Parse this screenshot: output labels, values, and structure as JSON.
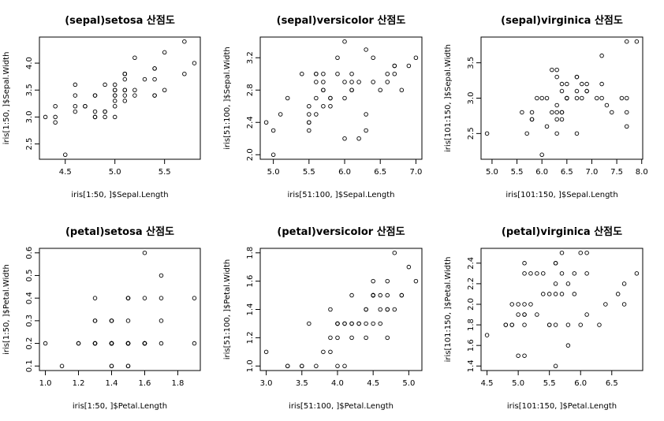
{
  "chart_data": [
    {
      "type": "scatter",
      "title": "(sepal)setosa 산점도",
      "xlabel": "iris[1:50, ]$Sepal.Length",
      "ylabel": "iris[1:50, ]$Sepal.Width",
      "xlim": [
        4.3,
        5.8
      ],
      "ylim": [
        2.3,
        4.4
      ],
      "xticks": [
        4.5,
        5.0,
        5.5
      ],
      "xtick_labels": [
        "4.5",
        "5.0",
        "5.5"
      ],
      "yticks": [
        2.5,
        3.0,
        3.5,
        4.0
      ],
      "ytick_labels": [
        "2.5",
        "3.0",
        "3.5",
        "4.0"
      ],
      "x": [
        5.1,
        4.9,
        4.7,
        4.6,
        5.0,
        5.4,
        4.6,
        5.0,
        4.4,
        4.9,
        5.4,
        4.8,
        4.8,
        4.3,
        5.8,
        5.7,
        5.4,
        5.1,
        5.7,
        5.1,
        5.4,
        5.1,
        4.6,
        5.1,
        4.8,
        5.0,
        5.0,
        5.2,
        5.2,
        4.7,
        4.8,
        5.4,
        5.2,
        5.5,
        4.9,
        5.0,
        5.5,
        4.9,
        4.4,
        5.1,
        5.0,
        4.5,
        4.4,
        5.0,
        5.1,
        4.8,
        5.1,
        4.6,
        5.3,
        5.0
      ],
      "y": [
        3.5,
        3.0,
        3.2,
        3.1,
        3.6,
        3.9,
        3.4,
        3.4,
        2.9,
        3.1,
        3.7,
        3.4,
        3.0,
        3.0,
        4.0,
        4.4,
        3.9,
        3.5,
        3.8,
        3.8,
        3.4,
        3.7,
        3.6,
        3.3,
        3.4,
        3.0,
        3.4,
        3.5,
        3.4,
        3.2,
        3.1,
        3.4,
        4.1,
        4.2,
        3.1,
        3.2,
        3.5,
        3.6,
        3.0,
        3.4,
        3.5,
        2.3,
        3.2,
        3.5,
        3.8,
        3.0,
        3.8,
        3.2,
        3.7,
        3.3
      ]
    },
    {
      "type": "scatter",
      "title": "(sepal)versicolor 산점도",
      "xlabel": "iris[51:100, ]$Sepal.Length",
      "ylabel": "iris[51:100, ]$Sepal.Width",
      "xlim": [
        4.9,
        7.0
      ],
      "ylim": [
        2.0,
        3.4
      ],
      "xticks": [
        5.0,
        5.5,
        6.0,
        6.5,
        7.0
      ],
      "xtick_labels": [
        "5.0",
        "5.5",
        "6.0",
        "6.5",
        "7.0"
      ],
      "yticks": [
        2.0,
        2.4,
        2.8,
        3.2
      ],
      "ytick_labels": [
        "2.0",
        "2.4",
        "2.8",
        "3.2"
      ],
      "x": [
        7.0,
        6.4,
        6.9,
        5.5,
        6.5,
        5.7,
        6.3,
        4.9,
        6.6,
        5.2,
        5.0,
        5.9,
        6.0,
        6.1,
        5.6,
        6.7,
        5.6,
        5.8,
        6.2,
        5.6,
        5.9,
        6.1,
        6.3,
        6.1,
        6.4,
        6.6,
        6.8,
        6.7,
        6.0,
        5.7,
        5.5,
        5.5,
        5.8,
        6.0,
        5.4,
        6.0,
        6.7,
        6.3,
        5.6,
        5.5,
        5.5,
        6.1,
        5.8,
        5.0,
        5.6,
        5.7,
        5.7,
        6.2,
        5.1,
        5.7
      ],
      "y": [
        3.2,
        3.2,
        3.1,
        2.3,
        2.8,
        2.8,
        3.3,
        2.4,
        2.9,
        2.7,
        2.0,
        3.0,
        2.2,
        2.9,
        2.9,
        3.1,
        3.0,
        2.7,
        2.2,
        2.5,
        3.2,
        2.8,
        2.5,
        2.8,
        2.9,
        3.0,
        2.8,
        3.0,
        2.9,
        2.6,
        2.4,
        2.4,
        2.7,
        2.7,
        3.0,
        3.4,
        3.1,
        2.3,
        3.0,
        2.5,
        2.6,
        3.0,
        2.6,
        2.3,
        2.7,
        3.0,
        2.9,
        2.9,
        2.5,
        2.8
      ]
    },
    {
      "type": "scatter",
      "title": "(sepal)virginica 산점도",
      "xlabel": "iris[101:150, ]$Sepal.Length",
      "ylabel": "iris[101:150, ]$Sepal.Width",
      "xlim": [
        4.9,
        7.9
      ],
      "ylim": [
        2.2,
        3.8
      ],
      "xticks": [
        5.0,
        5.5,
        6.0,
        6.5,
        7.0,
        7.5,
        8.0
      ],
      "xtick_labels": [
        "5.0",
        "5.5",
        "6.0",
        "6.5",
        "7.0",
        "7.5",
        "8.0"
      ],
      "yticks": [
        2.5,
        3.0,
        3.5
      ],
      "ytick_labels": [
        "2.5",
        "3.0",
        "3.5"
      ],
      "x": [
        6.3,
        5.8,
        7.1,
        6.3,
        6.5,
        7.6,
        4.9,
        7.3,
        6.7,
        7.2,
        6.5,
        6.4,
        6.8,
        5.7,
        5.8,
        6.4,
        6.5,
        7.7,
        7.7,
        6.0,
        6.9,
        5.6,
        7.7,
        6.3,
        6.7,
        7.2,
        6.2,
        6.1,
        6.4,
        7.2,
        7.4,
        7.9,
        6.4,
        6.3,
        6.1,
        7.7,
        6.3,
        6.4,
        6.0,
        6.9,
        6.7,
        6.9,
        5.8,
        6.8,
        6.7,
        6.7,
        6.3,
        6.5,
        6.2,
        5.9
      ],
      "y": [
        3.3,
        2.7,
        3.0,
        2.9,
        3.0,
        3.0,
        2.5,
        2.9,
        2.5,
        3.6,
        3.2,
        2.7,
        3.0,
        2.5,
        2.8,
        3.2,
        3.0,
        3.8,
        2.6,
        2.2,
        3.2,
        2.8,
        2.8,
        2.7,
        3.3,
        3.2,
        2.8,
        3.0,
        2.8,
        3.0,
        2.8,
        3.8,
        2.8,
        2.8,
        2.6,
        3.0,
        3.4,
        3.1,
        3.0,
        3.1,
        3.1,
        3.1,
        2.7,
        3.2,
        3.3,
        3.0,
        2.5,
        3.0,
        3.4,
        3.0
      ]
    },
    {
      "type": "scatter",
      "title": "(petal)setosa 산점도",
      "xlabel": "iris[1:50, ]$Petal.Length",
      "ylabel": "iris[1:50, ]$Petal.Width",
      "xlim": [
        1.0,
        1.9
      ],
      "ylim": [
        0.1,
        0.6
      ],
      "xticks": [
        1.0,
        1.2,
        1.4,
        1.6,
        1.8
      ],
      "xtick_labels": [
        "1.0",
        "1.2",
        "1.4",
        "1.6",
        "1.8"
      ],
      "yticks": [
        0.1,
        0.2,
        0.3,
        0.4,
        0.5,
        0.6
      ],
      "ytick_labels": [
        "0.1",
        "0.2",
        "0.3",
        "0.4",
        "0.5",
        "0.6"
      ],
      "x": [
        1.4,
        1.4,
        1.3,
        1.5,
        1.4,
        1.7,
        1.4,
        1.5,
        1.4,
        1.5,
        1.5,
        1.6,
        1.4,
        1.1,
        1.2,
        1.5,
        1.3,
        1.4,
        1.7,
        1.5,
        1.7,
        1.5,
        1.0,
        1.7,
        1.9,
        1.6,
        1.6,
        1.5,
        1.4,
        1.6,
        1.6,
        1.5,
        1.5,
        1.4,
        1.5,
        1.2,
        1.3,
        1.4,
        1.3,
        1.5,
        1.3,
        1.3,
        1.3,
        1.6,
        1.9,
        1.4,
        1.6,
        1.4,
        1.5,
        1.4
      ],
      "y": [
        0.2,
        0.2,
        0.2,
        0.2,
        0.2,
        0.4,
        0.3,
        0.2,
        0.2,
        0.1,
        0.2,
        0.2,
        0.1,
        0.1,
        0.2,
        0.4,
        0.4,
        0.3,
        0.3,
        0.3,
        0.2,
        0.4,
        0.2,
        0.5,
        0.2,
        0.2,
        0.4,
        0.2,
        0.2,
        0.2,
        0.2,
        0.4,
        0.1,
        0.2,
        0.2,
        0.2,
        0.2,
        0.1,
        0.2,
        0.2,
        0.3,
        0.3,
        0.2,
        0.6,
        0.4,
        0.3,
        0.2,
        0.2,
        0.2,
        0.2
      ]
    },
    {
      "type": "scatter",
      "title": "(petal)versicolor 산점도",
      "xlabel": "iris[51:100, ]$Petal.Length",
      "ylabel": "iris[51:100, ]$Petal.Width",
      "xlim": [
        3.0,
        5.1
      ],
      "ylim": [
        1.0,
        1.8
      ],
      "xticks": [
        3.0,
        3.5,
        4.0,
        4.5,
        5.0
      ],
      "xtick_labels": [
        "3.0",
        "3.5",
        "4.0",
        "4.5",
        "5.0"
      ],
      "yticks": [
        1.0,
        1.2,
        1.4,
        1.6,
        1.8
      ],
      "ytick_labels": [
        "1.0",
        "1.2",
        "1.4",
        "1.6",
        "1.8"
      ],
      "x": [
        4.7,
        4.5,
        4.9,
        4.0,
        4.6,
        4.5,
        4.7,
        3.3,
        4.6,
        3.9,
        3.5,
        4.2,
        4.0,
        4.7,
        3.6,
        4.4,
        4.5,
        4.1,
        4.5,
        3.9,
        4.8,
        4.0,
        4.9,
        4.7,
        4.3,
        4.4,
        4.8,
        5.0,
        4.5,
        3.5,
        3.8,
        3.7,
        3.9,
        5.1,
        4.5,
        4.5,
        4.7,
        4.4,
        4.1,
        4.0,
        4.4,
        4.6,
        4.0,
        3.3,
        4.2,
        4.2,
        4.2,
        4.3,
        3.0,
        4.1
      ],
      "y": [
        1.4,
        1.5,
        1.5,
        1.3,
        1.5,
        1.3,
        1.6,
        1.0,
        1.3,
        1.4,
        1.0,
        1.5,
        1.0,
        1.4,
        1.3,
        1.4,
        1.5,
        1.0,
        1.5,
        1.1,
        1.8,
        1.3,
        1.5,
        1.2,
        1.3,
        1.4,
        1.4,
        1.7,
        1.5,
        1.0,
        1.1,
        1.0,
        1.2,
        1.6,
        1.5,
        1.6,
        1.5,
        1.3,
        1.3,
        1.3,
        1.2,
        1.4,
        1.2,
        1.0,
        1.3,
        1.2,
        1.3,
        1.3,
        1.1,
        1.3
      ]
    },
    {
      "type": "scatter",
      "title": "(petal)virginica 산점도",
      "xlabel": "iris[101:150, ]$Petal.Length",
      "ylabel": "iris[101:150, ]$Petal.Width",
      "xlim": [
        4.5,
        6.9
      ],
      "ylim": [
        1.4,
        2.5
      ],
      "xticks": [
        4.5,
        5.0,
        5.5,
        6.0,
        6.5
      ],
      "xtick_labels": [
        "4.5",
        "5.0",
        "5.5",
        "6.0",
        "6.5"
      ],
      "yticks": [
        1.4,
        1.6,
        1.8,
        2.0,
        2.2,
        2.4
      ],
      "ytick_labels": [
        "1.4",
        "1.6",
        "1.8",
        "2.0",
        "2.2",
        "2.4"
      ],
      "x": [
        6.0,
        5.1,
        5.9,
        5.6,
        5.8,
        6.6,
        4.5,
        6.3,
        5.8,
        6.1,
        5.1,
        5.3,
        5.5,
        5.0,
        5.1,
        5.3,
        5.5,
        6.7,
        6.9,
        5.0,
        5.7,
        4.9,
        6.7,
        4.9,
        5.7,
        6.0,
        4.8,
        4.9,
        5.6,
        5.8,
        6.1,
        6.4,
        5.6,
        5.1,
        5.6,
        6.1,
        5.6,
        5.5,
        4.8,
        5.4,
        5.6,
        5.1,
        5.1,
        5.9,
        5.7,
        5.2,
        5.0,
        5.2,
        5.4,
        5.1
      ],
      "y": [
        2.5,
        1.9,
        2.1,
        1.8,
        2.2,
        2.1,
        1.7,
        1.8,
        1.8,
        2.5,
        2.0,
        1.9,
        2.1,
        2.0,
        2.4,
        2.3,
        1.8,
        2.2,
        2.3,
        1.5,
        2.3,
        2.0,
        2.0,
        1.8,
        2.1,
        1.8,
        1.8,
        1.8,
        2.1,
        1.6,
        1.9,
        2.0,
        2.2,
        1.5,
        1.4,
        2.3,
        2.4,
        1.8,
        1.8,
        2.1,
        2.4,
        2.3,
        1.9,
        2.3,
        2.5,
        2.3,
        1.9,
        2.0,
        2.3,
        1.8
      ]
    }
  ]
}
